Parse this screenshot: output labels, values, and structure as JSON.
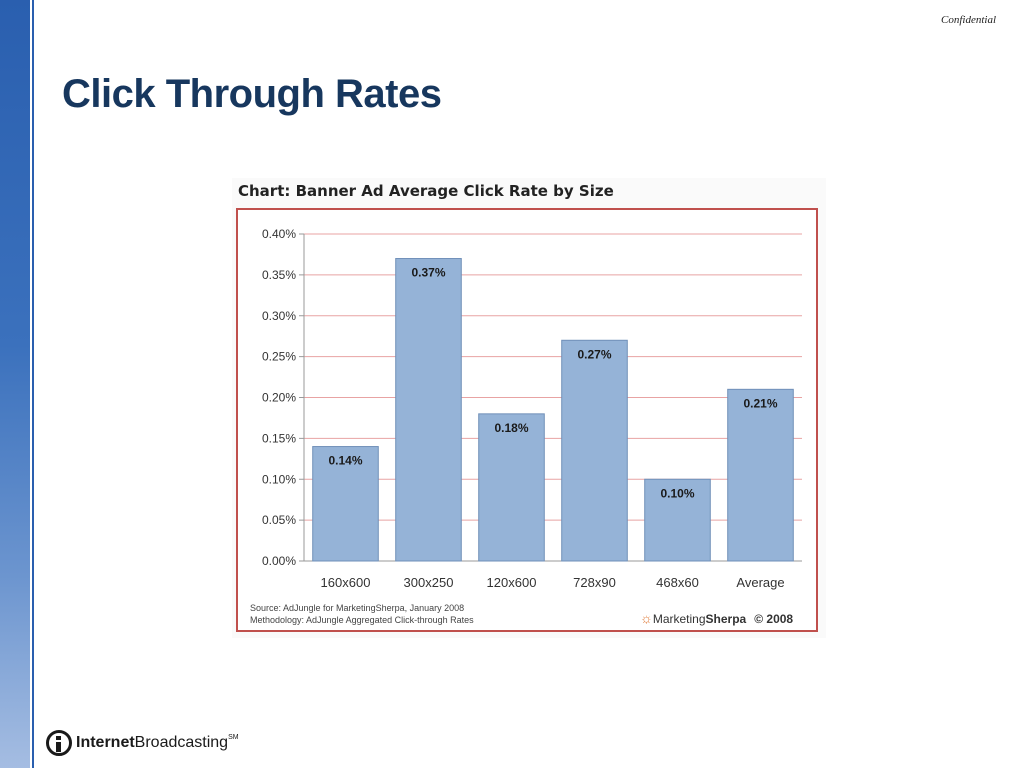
{
  "slide": {
    "confidential": "Confidential",
    "title": "Click Through Rates",
    "footer_logo": {
      "bold": "Internet",
      "regular": "Broadcasting",
      "mark": "SM"
    }
  },
  "chart_data": {
    "type": "bar",
    "title": "Chart: Banner Ad Average Click Rate by Size",
    "categories": [
      "160x600",
      "300x250",
      "120x600",
      "728x90",
      "468x60",
      "Average"
    ],
    "values": [
      0.14,
      0.37,
      0.18,
      0.27,
      0.1,
      0.21
    ],
    "data_labels": [
      "0.14%",
      "0.37%",
      "0.18%",
      "0.27%",
      "0.10%",
      "0.21%"
    ],
    "y_ticks": [
      "0.00%",
      "0.05%",
      "0.10%",
      "0.15%",
      "0.20%",
      "0.25%",
      "0.30%",
      "0.35%",
      "0.40%"
    ],
    "ylim": [
      0,
      0.4
    ],
    "ystep": 0.05,
    "xlabel": "",
    "ylabel": "",
    "grid": true,
    "bar_color": "#95b3d7",
    "grid_color": "#e8a3a3",
    "frame_color": "#c0504d",
    "source": "Source: AdJungle for MarketingSherpa, January 2008",
    "methodology": "Methodology: AdJungle Aggregated Click-through Rates",
    "brand": {
      "prefix": "Marketing",
      "bold": "Sherpa",
      "copyright": "© 2008"
    }
  }
}
